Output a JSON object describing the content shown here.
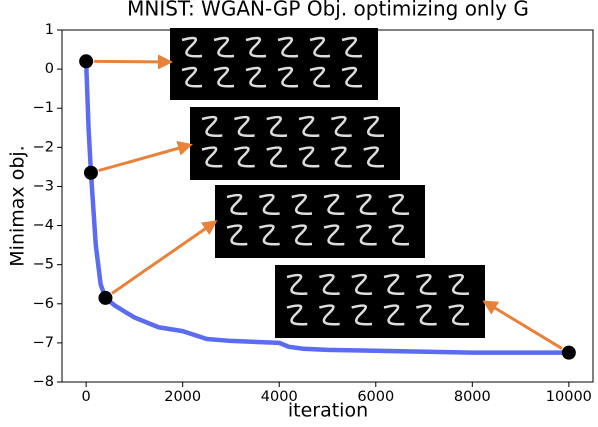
{
  "chart_data": {
    "type": "line",
    "title": "MNIST: WGAN-GP Obj. optimizing only G",
    "xlabel": "iteration",
    "ylabel": "Minimax obj.",
    "xlim": [
      -500,
      10500
    ],
    "ylim": [
      -8,
      1
    ],
    "xticks": [
      0,
      2000,
      4000,
      6000,
      8000,
      10000
    ],
    "yticks": [
      {
        "value": -8,
        "label": "−8"
      },
      {
        "value": -7,
        "label": "−7"
      },
      {
        "value": -6,
        "label": "−6"
      },
      {
        "value": -5,
        "label": "−5"
      },
      {
        "value": -4,
        "label": "−4"
      },
      {
        "value": -3,
        "label": "−3"
      },
      {
        "value": -2,
        "label": "−2"
      },
      {
        "value": -1,
        "label": "−1"
      },
      0,
      1
    ],
    "grid": false,
    "series": [
      {
        "color": "#5b6cf0",
        "x": [
          0,
          50,
          100,
          200,
          300,
          400,
          600,
          1000,
          1500,
          2000,
          2500,
          3000,
          4000,
          4200,
          4500,
          5000,
          6000,
          8000,
          10000
        ],
        "values": [
          0.2,
          -1.5,
          -2.65,
          -4.5,
          -5.5,
          -5.85,
          -6.05,
          -6.35,
          -6.6,
          -6.7,
          -6.9,
          -6.95,
          -7.0,
          -7.1,
          -7.15,
          -7.18,
          -7.2,
          -7.25,
          -7.25
        ]
      }
    ],
    "markers": {
      "color": "#000000",
      "x": [
        0,
        100,
        400,
        10000
      ],
      "values": [
        0.2,
        -2.65,
        -5.85,
        -7.25
      ]
    },
    "arrow_color": "#e8823a"
  }
}
